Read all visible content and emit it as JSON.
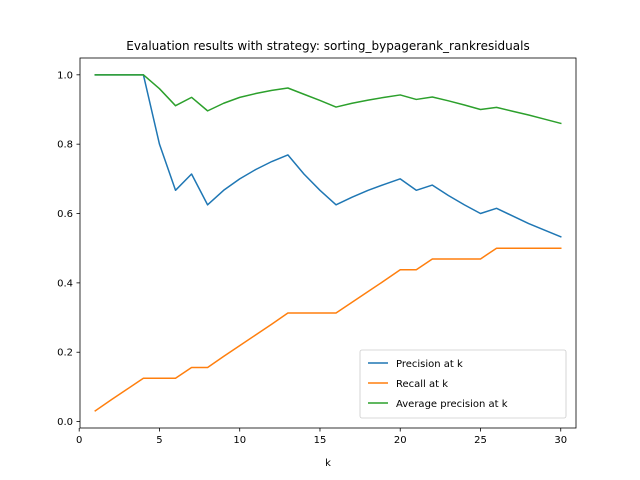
{
  "chart_data": {
    "type": "line",
    "title": "Evaluation results with strategy: sorting_bypagerank_rankresiduals",
    "xlabel": "k",
    "ylabel": "",
    "xlim": [
      0.05,
      30.95
    ],
    "ylim": [
      -0.0185,
      1.0485
    ],
    "xticks": [
      0,
      5,
      10,
      15,
      20,
      25,
      30
    ],
    "yticks": [
      0.0,
      0.2,
      0.4,
      0.6,
      0.8,
      1.0
    ],
    "ytick_labels": [
      "0.0",
      "0.2",
      "0.4",
      "0.6",
      "0.8",
      "1.0"
    ],
    "grid": false,
    "legend_position": "lower-right",
    "x": [
      1,
      2,
      3,
      4,
      5,
      6,
      7,
      8,
      9,
      10,
      11,
      12,
      13,
      14,
      15,
      16,
      17,
      18,
      19,
      20,
      21,
      22,
      23,
      24,
      25,
      26,
      27,
      28,
      29,
      30
    ],
    "series": [
      {
        "name": "Precision at k",
        "color": "#1f77b4",
        "values": [
          1.0,
          1.0,
          1.0,
          1.0,
          0.8,
          0.667,
          0.714,
          0.625,
          0.667,
          0.7,
          0.727,
          0.75,
          0.769,
          0.714,
          0.667,
          0.625,
          0.647,
          0.667,
          0.684,
          0.7,
          0.667,
          0.682,
          0.652,
          0.625,
          0.6,
          0.615,
          0.593,
          0.571,
          0.552,
          0.533
        ]
      },
      {
        "name": "Recall at k",
        "color": "#ff7f0e",
        "values": [
          0.031,
          0.063,
          0.094,
          0.125,
          0.125,
          0.125,
          0.156,
          0.156,
          0.188,
          0.219,
          0.25,
          0.281,
          0.313,
          0.313,
          0.313,
          0.313,
          0.344,
          0.375,
          0.406,
          0.438,
          0.438,
          0.469,
          0.469,
          0.469,
          0.469,
          0.5,
          0.5,
          0.5,
          0.5,
          0.5
        ]
      },
      {
        "name": "Average precision at k",
        "color": "#2ca02c",
        "values": [
          1.0,
          1.0,
          1.0,
          1.0,
          0.96,
          0.911,
          0.935,
          0.896,
          0.918,
          0.935,
          0.946,
          0.955,
          0.962,
          0.944,
          0.926,
          0.907,
          0.918,
          0.927,
          0.935,
          0.942,
          0.929,
          0.936,
          0.925,
          0.913,
          0.9,
          0.906,
          0.895,
          0.884,
          0.872,
          0.86
        ]
      }
    ]
  }
}
